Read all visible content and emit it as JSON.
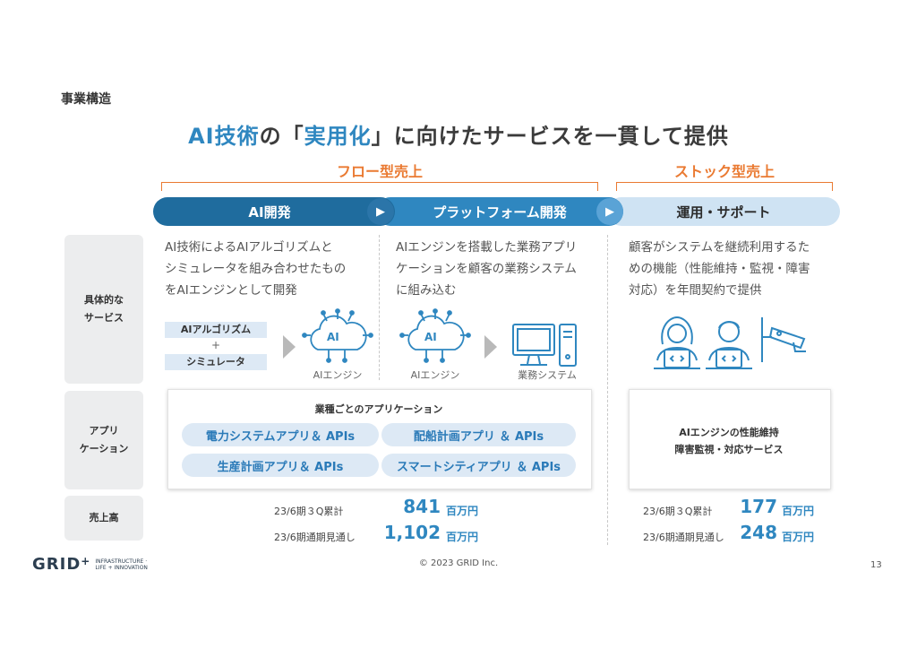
{
  "section_label": "事業構造",
  "headline": {
    "part1": "AI技術",
    "part2": "の「",
    "part3": "実用化",
    "part4": "」に向けたサービスを一貫して提供"
  },
  "revenue_types": {
    "flow": "フロー型売上",
    "stock": "ストック型売上"
  },
  "phases": [
    {
      "label": "AI開発"
    },
    {
      "label": "プラットフォーム開発"
    },
    {
      "label": "運用・サポート"
    }
  ],
  "arrow_glyph": "▶",
  "row_headers": {
    "services": "具体的な\nサービス",
    "applications": "アプリ\nケーション",
    "sales": "売上高"
  },
  "descriptions": {
    "ai_dev": [
      "AI技術によるAIアルゴリズムと",
      "シミュレータを組み合わせたもの",
      "をAIエンジンとして開発"
    ],
    "platform": [
      "AIエンジンを搭載した業務アプリ",
      "ケーションを顧客の業務システム",
      "に組み込む"
    ],
    "operation": [
      "顧客がシステムを継続利用するた",
      "めの機能（性能維持・監視・障害",
      "対応）を年間契約で提供"
    ]
  },
  "ai_dev_diagram": {
    "chip1": "AIアルゴリズム",
    "plus": "+",
    "chip2": "シミュレータ",
    "engine_caption": "AIエンジン",
    "engine_text": "AI"
  },
  "platform_diagram": {
    "engine_caption": "AIエンジン",
    "engine_text": "AI",
    "system_caption": "業務システム"
  },
  "applications": {
    "title": "業種ごとのアプリケーション",
    "pills": [
      "電力システムアプリ＆ APIs",
      "配船計画アプリ ＆ APIs",
      "生産計画アプリ＆ APIs",
      "スマートシティアプリ ＆ APIs"
    ]
  },
  "support_box": {
    "line1": "AIエンジンの性能維持",
    "line2": "障害監視・対応サービス"
  },
  "sales": {
    "flow": [
      {
        "label": "23/6期３Q累計",
        "value": "841",
        "unit": "百万円"
      },
      {
        "label": "23/6期通期見通し",
        "value": "1,102",
        "unit": "百万円"
      }
    ],
    "stock": [
      {
        "label": "23/6期３Q累計",
        "value": "177",
        "unit": "百万円"
      },
      {
        "label": "23/6期通期見通し",
        "value": "248",
        "unit": "百万円"
      }
    ]
  },
  "footer": {
    "logo": "GRID",
    "logo_plus": "+",
    "tagline1": "INFRASTRUCTURE ·",
    "tagline2": "LIFE + INNOVATION",
    "copyright": "© 2023 GRID Inc.",
    "page": "13"
  },
  "colors": {
    "phase1": "#1f6c9e",
    "phase2": "#2f87c0",
    "phase3": "#cfe3f3",
    "accent": "#2f87c0",
    "orange": "#ea7a32"
  }
}
